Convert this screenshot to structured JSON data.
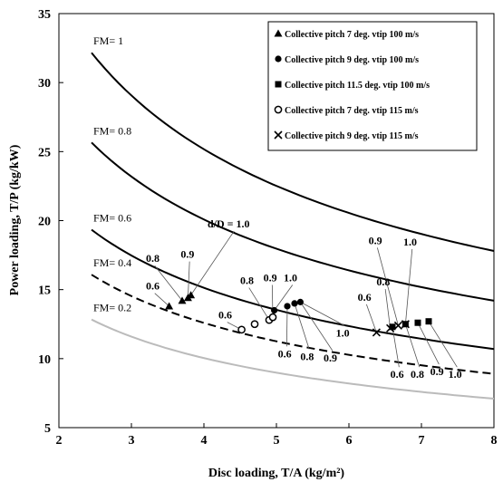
{
  "chart_data": {
    "type": "line",
    "xlabel": "Disc loading, T/A (kg/m²)",
    "ylabel": "Power loading, T/P (kg/kW)",
    "xlim": [
      2,
      8
    ],
    "ylim": [
      5,
      35
    ],
    "x_ticks": [
      2,
      3,
      4,
      5,
      6,
      7,
      8
    ],
    "y_ticks": [
      5,
      10,
      15,
      20,
      25,
      30,
      35
    ],
    "grid": false,
    "legend_position": "top-right",
    "fm_curves": [
      {
        "label": "FM= 1",
        "fm": 1.0,
        "color": "#000000",
        "dash": "",
        "x_range": [
          2.45,
          8
        ],
        "y_end": 17.8
      },
      {
        "label": "FM= 0.8",
        "fm": 0.8,
        "color": "#000000",
        "dash": "",
        "x_range": [
          2.45,
          8
        ],
        "y_end": 14.2
      },
      {
        "label": "FM= 0.6",
        "fm": 0.6,
        "color": "#000000",
        "dash": "",
        "x_range": [
          2.45,
          8
        ],
        "y_end": 10.7
      },
      {
        "label": "FM= 0.4",
        "fm": 0.4,
        "color": "#000000",
        "dash": "9,5",
        "x_range": [
          2.45,
          8
        ],
        "y_end": 8.9
      },
      {
        "label": "FM= 0.2",
        "fm": 0.2,
        "color": "#bbbbbb",
        "dash": "",
        "x_range": [
          2.45,
          8
        ],
        "y_end": 7.1
      }
    ],
    "series": [
      {
        "name": "Collective pitch 7 deg. vtip 100 m/s",
        "marker": "triangle",
        "points": [
          [
            3.52,
            13.8
          ],
          [
            3.7,
            14.2
          ],
          [
            3.78,
            14.4
          ],
          [
            3.82,
            14.6
          ]
        ]
      },
      {
        "name": "Collective pitch 9 deg. vtip 100 m/s",
        "marker": "filled-circle",
        "points": [
          [
            4.97,
            13.5
          ],
          [
            5.15,
            13.8
          ],
          [
            5.25,
            14.0
          ],
          [
            5.33,
            14.1
          ]
        ]
      },
      {
        "name": "Collective pitch 11.5 deg. vtip 100 m/s",
        "marker": "square",
        "points": [
          [
            6.6,
            12.3
          ],
          [
            6.78,
            12.5
          ],
          [
            6.95,
            12.6
          ],
          [
            7.1,
            12.7
          ]
        ]
      },
      {
        "name": "Collective pitch 7 deg. vtip 115 m/s",
        "marker": "open-circle",
        "points": [
          [
            4.52,
            12.1
          ],
          [
            4.7,
            12.5
          ],
          [
            4.9,
            12.8
          ],
          [
            4.95,
            13.0
          ]
        ]
      },
      {
        "name": "Collective pitch 9 deg. vtip 115 m/s",
        "marker": "x",
        "points": [
          [
            6.38,
            11.9
          ],
          [
            6.57,
            12.2
          ],
          [
            6.68,
            12.4
          ],
          [
            6.78,
            12.5
          ]
        ]
      }
    ],
    "annotations": [
      {
        "text": "d/D = 1.0",
        "x": 4.05,
        "y": 19.5,
        "target": [
          3.82,
          14.6
        ]
      },
      {
        "text": "0.9",
        "x": 3.68,
        "y": 17.3,
        "target": [
          3.78,
          14.4
        ]
      },
      {
        "text": "0.8",
        "x": 3.2,
        "y": 17.0,
        "target": [
          3.7,
          14.2
        ]
      },
      {
        "text": "0.6",
        "x": 3.2,
        "y": 15.0,
        "target": [
          3.52,
          13.8
        ]
      },
      {
        "text": "0.8",
        "x": 4.5,
        "y": 15.4,
        "target": [
          4.9,
          12.8
        ]
      },
      {
        "text": "0.9",
        "x": 4.82,
        "y": 15.6,
        "target": [
          4.95,
          13.0
        ]
      },
      {
        "text": "1.0",
        "x": 5.1,
        "y": 15.6,
        "target": [
          4.97,
          13.5
        ]
      },
      {
        "text": "0.6",
        "x": 4.2,
        "y": 12.9,
        "target": [
          4.52,
          12.1
        ]
      },
      {
        "text": "0.6",
        "x": 5.02,
        "y": 10.1,
        "target": [
          5.15,
          13.8
        ]
      },
      {
        "text": "0.8",
        "x": 5.33,
        "y": 9.9,
        "target": [
          5.25,
          14.0
        ]
      },
      {
        "text": "0.9",
        "x": 5.65,
        "y": 9.8,
        "target": [
          5.33,
          14.1
        ]
      },
      {
        "text": "1.0",
        "x": 5.82,
        "y": 11.6,
        "target": [
          5.33,
          14.1
        ]
      },
      {
        "text": "0.9",
        "x": 6.27,
        "y": 18.3,
        "target": [
          6.68,
          12.4
        ]
      },
      {
        "text": "1.0",
        "x": 6.75,
        "y": 18.2,
        "target": [
          6.78,
          12.5
        ]
      },
      {
        "text": "0.8",
        "x": 6.38,
        "y": 15.3,
        "target": [
          6.57,
          12.2
        ]
      },
      {
        "text": "0.6",
        "x": 6.12,
        "y": 14.2,
        "target": [
          6.38,
          11.9
        ]
      },
      {
        "text": "0.6",
        "x": 6.57,
        "y": 8.6,
        "target": [
          6.6,
          12.3
        ]
      },
      {
        "text": "0.8",
        "x": 6.85,
        "y": 8.6,
        "target": [
          6.78,
          12.5
        ]
      },
      {
        "text": "0.9",
        "x": 7.12,
        "y": 8.8,
        "target": [
          6.95,
          12.6
        ]
      },
      {
        "text": "1.0",
        "x": 7.37,
        "y": 8.6,
        "target": [
          7.1,
          12.7
        ]
      }
    ]
  }
}
